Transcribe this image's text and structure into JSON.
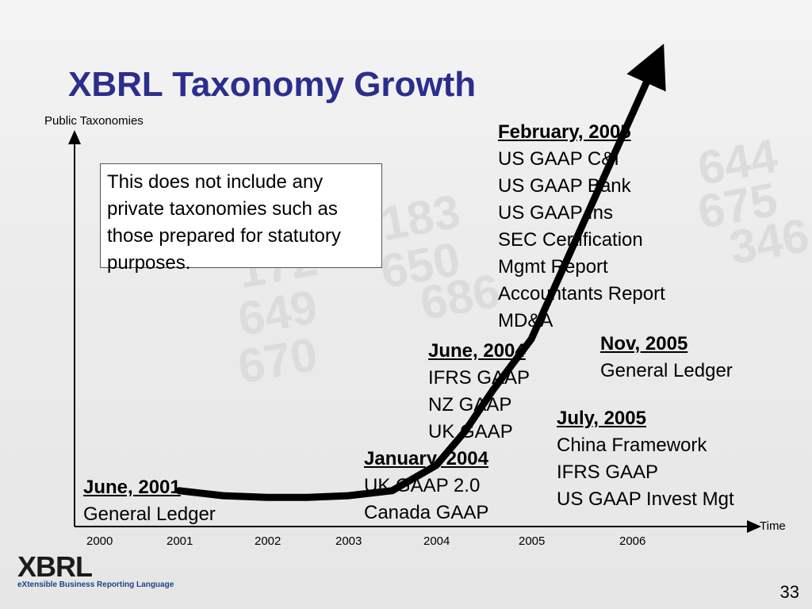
{
  "slide": {
    "title": "XBRL Taxonomy Growth",
    "page_number": "33",
    "note": "This does not include any private taxonomies such as those prepared for statutory purposes.",
    "logo": {
      "text": "XBRL",
      "tagline": "eXtensible Business Reporting Language"
    }
  },
  "chart_data": {
    "type": "line",
    "title": "XBRL Taxonomy Growth",
    "ylabel": "Public Taxonomies",
    "xlabel": "Time",
    "x_ticks": [
      "2000",
      "2001",
      "2002",
      "2003",
      "2004",
      "2005",
      "2006"
    ],
    "grid": false,
    "series": [
      {
        "x": [
          2001.0,
          2001.5,
          2002.0,
          2002.5,
          2003.0,
          2003.5,
          2004.0,
          2004.3,
          2004.6,
          2005.0,
          2005.3,
          2005.6,
          2005.9,
          2006.2
        ],
        "y": [
          1,
          0.7,
          0.6,
          0.6,
          0.7,
          1,
          2.5,
          4.5,
          7,
          10,
          14,
          18,
          22,
          26
        ]
      }
    ],
    "annotations": [
      {
        "heading": "June, 2001",
        "lines": [
          "General Ledger"
        ]
      },
      {
        "heading": "January, 2004",
        "lines": [
          "UK GAAP 2.0",
          "Canada GAAP"
        ]
      },
      {
        "heading": "June, 2004",
        "lines": [
          "IFRS GAAP",
          "NZ GAAP",
          "UK GAAP"
        ]
      },
      {
        "heading": "February, 2005",
        "lines": [
          "US GAAP C&I",
          "US GAAP Bank",
          "US GAAP Ins",
          "SEC Certification",
          "Mgmt Report",
          "Accountants Report",
          "MD&A"
        ]
      },
      {
        "heading": "Nov, 2005",
        "lines": [
          "General Ledger"
        ]
      },
      {
        "heading": "July, 2005",
        "lines": [
          "China Framework",
          "IFRS GAAP",
          "US GAAP Invest Mgt"
        ]
      }
    ]
  }
}
